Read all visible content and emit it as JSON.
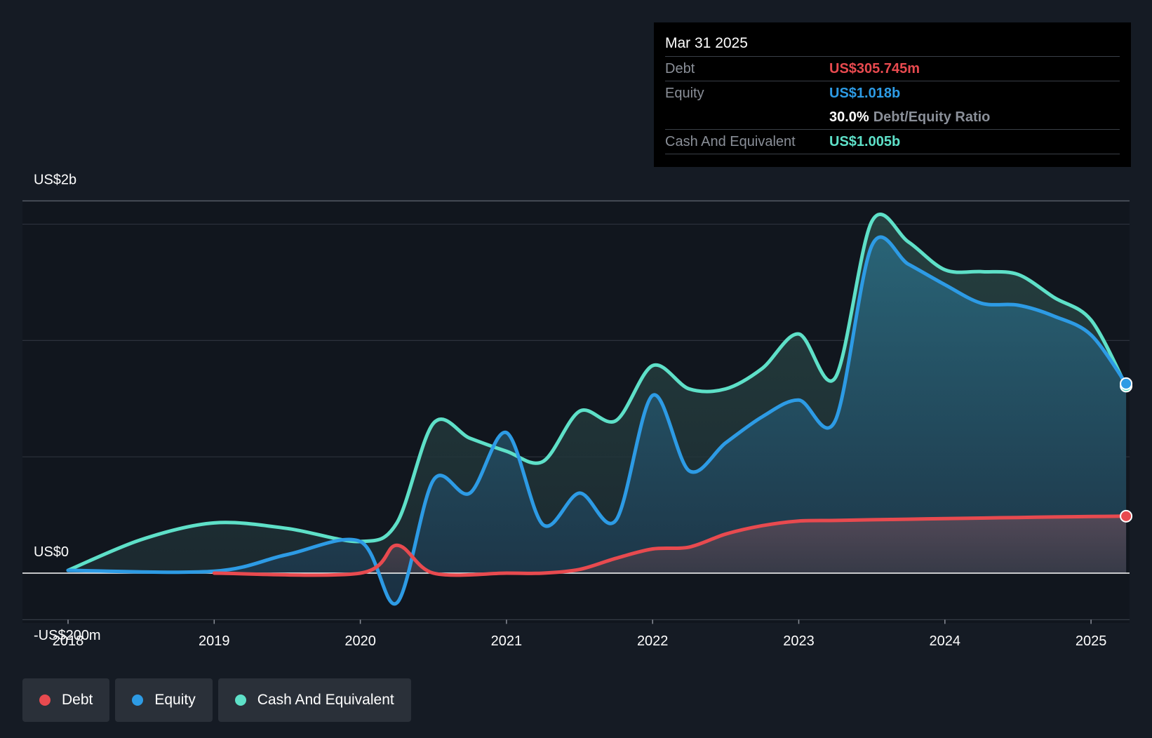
{
  "tooltip": {
    "date": "Mar 31 2025",
    "rows": [
      {
        "label": "Debt",
        "value": "US$305.745m",
        "color": "#e84a4f"
      },
      {
        "label": "Equity",
        "value": "US$1.018b",
        "color": "#2d9be5"
      },
      {
        "label": "",
        "value": "30.0%",
        "suffix": "Debt/Equity Ratio"
      },
      {
        "label": "Cash And Equivalent",
        "value": "US$1.005b",
        "color": "#5ee0c8"
      }
    ]
  },
  "legend": [
    {
      "label": "Debt",
      "color": "#e84a4f"
    },
    {
      "label": "Equity",
      "color": "#2d9be5"
    },
    {
      "label": "Cash And Equivalent",
      "color": "#5ee0c8"
    }
  ],
  "chart_data": {
    "type": "area",
    "y_labels": [
      "US$2b",
      "US$0",
      "-US$200m"
    ],
    "x_ticks": [
      "2018",
      "2019",
      "2020",
      "2021",
      "2022",
      "2023",
      "2024",
      "2025"
    ],
    "ylim": [
      -200,
      2000
    ],
    "grid": true,
    "series": [
      {
        "name": "Debt",
        "color": "#e84a4f",
        "x": [
          2019.0,
          2020.0,
          2020.25,
          2020.5,
          2021.0,
          2021.25,
          2021.5,
          2021.75,
          2022.0,
          2022.25,
          2022.5,
          2022.75,
          2023.0,
          2023.25,
          2023.5,
          2023.75,
          2024.0,
          2024.25,
          2024.5,
          2024.75,
          2025.0,
          2025.24
        ],
        "values": [
          0,
          0,
          150,
          0,
          0,
          0,
          20,
          80,
          130,
          140,
          210,
          255,
          280,
          283,
          287,
          290,
          293,
          296,
          299,
          302,
          304,
          306
        ]
      },
      {
        "name": "Equity",
        "color": "#2d9be5",
        "x": [
          2018.0,
          2019.0,
          2019.5,
          2020.0,
          2020.25,
          2020.5,
          2020.75,
          2021.0,
          2021.25,
          2021.5,
          2021.75,
          2022.0,
          2022.25,
          2022.5,
          2022.75,
          2023.0,
          2023.25,
          2023.5,
          2023.75,
          2024.0,
          2024.25,
          2024.5,
          2024.75,
          2025.0,
          2025.24
        ],
        "values": [
          15,
          10,
          100,
          170,
          -160,
          500,
          430,
          755,
          260,
          430,
          285,
          955,
          550,
          700,
          840,
          930,
          820,
          1760,
          1660,
          1550,
          1450,
          1440,
          1380,
          1280,
          1018
        ]
      },
      {
        "name": "Cash And Equivalent",
        "color": "#5ee0c8",
        "x": [
          2018.0,
          2018.5,
          2019.0,
          2019.5,
          2020.0,
          2020.25,
          2020.5,
          2020.75,
          2021.0,
          2021.25,
          2021.5,
          2021.75,
          2022.0,
          2022.25,
          2022.5,
          2022.75,
          2023.0,
          2023.25,
          2023.5,
          2023.75,
          2024.0,
          2024.25,
          2024.5,
          2024.75,
          2025.0,
          2025.24
        ],
        "values": [
          15,
          180,
          270,
          240,
          170,
          270,
          805,
          725,
          655,
          600,
          870,
          820,
          1115,
          990,
          990,
          1100,
          1285,
          1050,
          1890,
          1780,
          1630,
          1620,
          1605,
          1480,
          1360,
          1005
        ]
      }
    ]
  }
}
